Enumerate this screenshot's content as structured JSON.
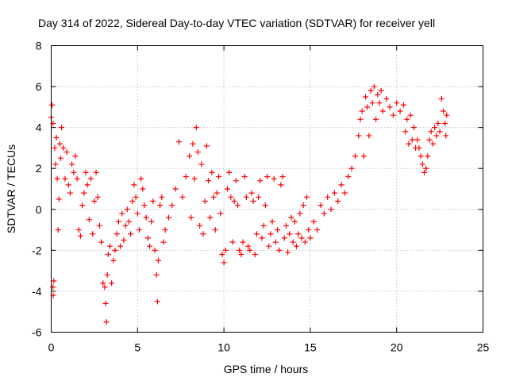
{
  "chart_data": {
    "type": "scatter",
    "title": "Day 314 of 2022, Sidereal Day-to-day VTEC variation (SDTVAR) for receiver yell",
    "xlabel": "GPS time / hours",
    "ylabel": "SDTVAR / TECUs",
    "xlim": [
      0,
      25
    ],
    "ylim": [
      -6,
      8
    ],
    "xticks": [
      "0",
      "5",
      "10",
      "15",
      "20",
      "25"
    ],
    "yticks": [
      "-6",
      "-4",
      "-2",
      "0",
      "2",
      "4",
      "6",
      "8"
    ],
    "grid": true,
    "marker": "+",
    "color": "#ff0000",
    "series": [
      {
        "name": "SDTVAR",
        "points": [
          [
            0.0,
            4.5
          ],
          [
            0.05,
            5.1
          ],
          [
            0.1,
            4.2
          ],
          [
            0.1,
            -3.8
          ],
          [
            0.12,
            -4.2
          ],
          [
            0.15,
            -3.5
          ],
          [
            0.2,
            3.0
          ],
          [
            0.25,
            2.2
          ],
          [
            0.3,
            3.5
          ],
          [
            0.35,
            1.5
          ],
          [
            0.4,
            -1.0
          ],
          [
            0.45,
            0.5
          ],
          [
            0.5,
            3.2
          ],
          [
            0.55,
            2.5
          ],
          [
            0.6,
            4.0
          ],
          [
            0.7,
            3.0
          ],
          [
            0.8,
            1.5
          ],
          [
            0.9,
            2.8
          ],
          [
            1.0,
            1.2
          ],
          [
            1.1,
            0.8
          ],
          [
            1.2,
            2.2
          ],
          [
            1.3,
            1.8
          ],
          [
            1.4,
            2.6
          ],
          [
            1.5,
            1.5
          ],
          [
            1.6,
            -1.0
          ],
          [
            1.7,
            -1.3
          ],
          [
            1.8,
            0.2
          ],
          [
            1.9,
            0.8
          ],
          [
            2.0,
            1.8
          ],
          [
            2.1,
            1.2
          ],
          [
            2.2,
            -0.5
          ],
          [
            2.3,
            1.5
          ],
          [
            2.4,
            -1.2
          ],
          [
            2.5,
            0.4
          ],
          [
            2.6,
            1.8
          ],
          [
            2.7,
            0.6
          ],
          [
            2.8,
            -0.8
          ],
          [
            2.9,
            -1.6
          ],
          [
            3.0,
            -3.6
          ],
          [
            3.1,
            -3.8
          ],
          [
            3.15,
            -4.6
          ],
          [
            3.2,
            -5.5
          ],
          [
            3.25,
            -3.2
          ],
          [
            3.3,
            -2.2
          ],
          [
            3.4,
            -1.8
          ],
          [
            3.5,
            -3.6
          ],
          [
            3.6,
            -2.5
          ],
          [
            3.7,
            -2.0
          ],
          [
            3.8,
            -1.2
          ],
          [
            3.9,
            -0.6
          ],
          [
            4.0,
            -1.8
          ],
          [
            4.1,
            -0.2
          ],
          [
            4.2,
            -1.5
          ],
          [
            4.3,
            -0.8
          ],
          [
            4.4,
            0.0
          ],
          [
            4.5,
            -0.6
          ],
          [
            4.6,
            -1.2
          ],
          [
            4.7,
            0.4
          ],
          [
            4.8,
            1.2
          ],
          [
            4.9,
            0.6
          ],
          [
            5.0,
            -0.2
          ],
          [
            5.1,
            -1.0
          ],
          [
            5.2,
            1.5
          ],
          [
            5.3,
            1.0
          ],
          [
            5.4,
            0.2
          ],
          [
            5.5,
            -0.4
          ],
          [
            5.6,
            -1.4
          ],
          [
            5.7,
            -1.8
          ],
          [
            5.8,
            -0.6
          ],
          [
            5.9,
            0.4
          ],
          [
            6.0,
            -2.0
          ],
          [
            6.1,
            -3.2
          ],
          [
            6.15,
            -4.5
          ],
          [
            6.2,
            -2.5
          ],
          [
            6.3,
            0.2
          ],
          [
            6.4,
            0.6
          ],
          [
            6.5,
            -1.6
          ],
          [
            6.6,
            -1.0
          ],
          [
            6.8,
            -0.4
          ],
          [
            7.0,
            0.2
          ],
          [
            7.2,
            1.0
          ],
          [
            7.4,
            3.3
          ],
          [
            7.6,
            0.6
          ],
          [
            7.8,
            1.6
          ],
          [
            8.0,
            2.6
          ],
          [
            8.1,
            -0.4
          ],
          [
            8.2,
            3.2
          ],
          [
            8.3,
            1.5
          ],
          [
            8.4,
            4.0
          ],
          [
            8.5,
            2.8
          ],
          [
            8.6,
            -0.8
          ],
          [
            8.7,
            2.2
          ],
          [
            8.8,
            -1.2
          ],
          [
            8.9,
            0.4
          ],
          [
            9.0,
            3.1
          ],
          [
            9.1,
            1.4
          ],
          [
            9.2,
            -0.4
          ],
          [
            9.3,
            1.8
          ],
          [
            9.4,
            0.6
          ],
          [
            9.5,
            -1.0
          ],
          [
            9.6,
            0.8
          ],
          [
            9.7,
            1.6
          ],
          [
            9.8,
            -0.2
          ],
          [
            9.9,
            -2.2
          ],
          [
            10.0,
            -2.6
          ],
          [
            10.1,
            -2.0
          ],
          [
            10.2,
            1.0
          ],
          [
            10.3,
            1.8
          ],
          [
            10.4,
            0.6
          ],
          [
            10.5,
            -1.6
          ],
          [
            10.6,
            0.4
          ],
          [
            10.7,
            1.4
          ],
          [
            10.8,
            0.2
          ],
          [
            10.9,
            -2.0
          ],
          [
            11.0,
            -2.2
          ],
          [
            11.1,
            -1.6
          ],
          [
            11.2,
            1.6
          ],
          [
            11.3,
            0.6
          ],
          [
            11.4,
            -1.8
          ],
          [
            11.5,
            -2.0
          ],
          [
            11.6,
            0.8
          ],
          [
            11.7,
            0.4
          ],
          [
            11.8,
            -2.2
          ],
          [
            11.9,
            -1.2
          ],
          [
            12.0,
            0.6
          ],
          [
            12.1,
            1.4
          ],
          [
            12.2,
            -1.4
          ],
          [
            12.3,
            -0.8
          ],
          [
            12.4,
            0.2
          ],
          [
            12.5,
            1.6
          ],
          [
            12.6,
            -1.8
          ],
          [
            12.7,
            -1.2
          ],
          [
            12.8,
            -0.6
          ],
          [
            12.9,
            1.5
          ],
          [
            13.0,
            -1.6
          ],
          [
            13.1,
            -1.0
          ],
          [
            13.2,
            -2.0
          ],
          [
            13.3,
            1.2
          ],
          [
            13.4,
            1.6
          ],
          [
            13.5,
            -1.4
          ],
          [
            13.6,
            -0.8
          ],
          [
            13.7,
            -2.1
          ],
          [
            13.8,
            -1.2
          ],
          [
            13.9,
            -0.4
          ],
          [
            14.0,
            -1.6
          ],
          [
            14.1,
            -0.6
          ],
          [
            14.2,
            -1.8
          ],
          [
            14.3,
            -1.2
          ],
          [
            14.4,
            -0.2
          ],
          [
            14.5,
            -1.4
          ],
          [
            14.6,
            0.2
          ],
          [
            14.7,
            -1.6
          ],
          [
            14.8,
            0.6
          ],
          [
            14.9,
            -1.0
          ],
          [
            15.0,
            -1.4
          ],
          [
            15.2,
            -0.6
          ],
          [
            15.4,
            -1.0
          ],
          [
            15.6,
            0.2
          ],
          [
            15.8,
            -0.2
          ],
          [
            16.0,
            0.6
          ],
          [
            16.2,
            0.0
          ],
          [
            16.4,
            0.8
          ],
          [
            16.6,
            0.4
          ],
          [
            16.8,
            1.2
          ],
          [
            17.0,
            0.8
          ],
          [
            17.2,
            1.6
          ],
          [
            17.4,
            2.0
          ],
          [
            17.6,
            2.6
          ],
          [
            17.8,
            3.6
          ],
          [
            17.9,
            4.4
          ],
          [
            18.0,
            4.8
          ],
          [
            18.1,
            2.6
          ],
          [
            18.2,
            5.5
          ],
          [
            18.3,
            5.0
          ],
          [
            18.4,
            3.6
          ],
          [
            18.5,
            5.8
          ],
          [
            18.6,
            5.2
          ],
          [
            18.7,
            6.0
          ],
          [
            18.8,
            4.4
          ],
          [
            18.9,
            5.6
          ],
          [
            19.0,
            5.2
          ],
          [
            19.1,
            5.8
          ],
          [
            19.2,
            4.8
          ],
          [
            19.4,
            5.4
          ],
          [
            19.6,
            5.0
          ],
          [
            19.8,
            4.6
          ],
          [
            20.0,
            5.2
          ],
          [
            20.2,
            4.8
          ],
          [
            20.4,
            5.1
          ],
          [
            20.5,
            3.8
          ],
          [
            20.6,
            4.4
          ],
          [
            20.7,
            3.2
          ],
          [
            20.8,
            4.6
          ],
          [
            20.9,
            3.4
          ],
          [
            21.0,
            4.0
          ],
          [
            21.1,
            3.0
          ],
          [
            21.2,
            3.4
          ],
          [
            21.3,
            3.0
          ],
          [
            21.4,
            2.6
          ],
          [
            21.5,
            2.2
          ],
          [
            21.6,
            1.8
          ],
          [
            21.7,
            2.0
          ],
          [
            21.8,
            2.6
          ],
          [
            21.9,
            3.4
          ],
          [
            22.0,
            3.8
          ],
          [
            22.1,
            3.2
          ],
          [
            22.2,
            4.0
          ],
          [
            22.3,
            3.6
          ],
          [
            22.4,
            4.2
          ],
          [
            22.5,
            3.8
          ],
          [
            22.6,
            5.4
          ],
          [
            22.7,
            4.8
          ],
          [
            22.8,
            4.2
          ],
          [
            22.85,
            3.6
          ],
          [
            22.9,
            4.6
          ]
        ]
      }
    ]
  }
}
